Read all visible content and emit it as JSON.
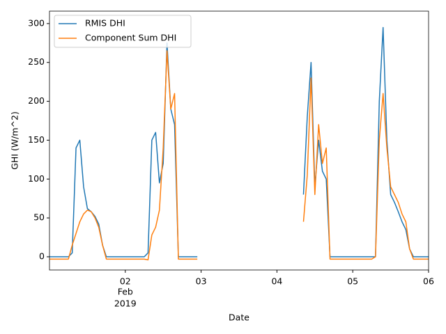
{
  "chart_data": {
    "type": "line",
    "xlabel": "Date",
    "ylabel": "GHI (W/m^2)",
    "x": [
      1,
      1.05,
      1.1,
      1.15,
      1.2,
      1.25,
      1.3,
      1.35,
      1.4,
      1.45,
      1.5,
      1.55,
      1.6,
      1.65,
      1.7,
      1.75,
      1.8,
      1.85,
      1.9,
      1.95,
      2,
      2.05,
      2.1,
      2.15,
      2.2,
      2.25,
      2.3,
      2.35,
      2.4,
      2.45,
      2.5,
      2.55,
      2.6,
      2.65,
      2.7,
      2.75,
      2.8,
      2.85,
      2.9,
      2.95,
      3,
      3.05,
      3.1,
      3.15,
      3.2,
      3.25,
      3.3,
      3.35,
      3.4,
      3.45,
      3.5,
      3.55,
      3.6,
      3.65,
      3.7,
      3.75,
      3.8,
      3.85,
      3.9,
      3.95,
      4,
      4.05,
      4.1,
      4.15,
      4.2,
      4.25,
      4.3,
      4.35,
      4.4,
      4.45,
      4.5,
      4.55,
      4.6,
      4.65,
      4.7,
      4.75,
      4.8,
      4.85,
      4.9,
      4.95,
      5,
      5.05,
      5.1,
      5.15,
      5.2,
      5.25,
      5.3,
      5.35,
      5.4,
      5.45,
      5.5,
      5.55,
      5.6,
      5.65,
      5.7,
      5.75,
      5.8,
      5.85,
      5.9,
      5.95,
      6
    ],
    "series": [
      {
        "name": "RMIS DHI",
        "color": "#1f77b4",
        "values": [
          0,
          0,
          0,
          0,
          0,
          0,
          5,
          140,
          150,
          90,
          62,
          58,
          52,
          42,
          15,
          0,
          0,
          0,
          0,
          0,
          0,
          0,
          0,
          0,
          0,
          0,
          5,
          150,
          160,
          95,
          120,
          275,
          190,
          170,
          0,
          0,
          0,
          0,
          0,
          0,
          null,
          null,
          null,
          null,
          null,
          null,
          null,
          null,
          null,
          null,
          null,
          null,
          null,
          null,
          null,
          null,
          null,
          null,
          null,
          null,
          null,
          null,
          null,
          null,
          null,
          null,
          null,
          80,
          180,
          250,
          90,
          150,
          110,
          100,
          0,
          0,
          0,
          0,
          0,
          0,
          0,
          0,
          0,
          0,
          0,
          0,
          0,
          200,
          295,
          150,
          80,
          70,
          58,
          45,
          35,
          10,
          0,
          0,
          0,
          0,
          0
        ]
      },
      {
        "name": "Component Sum DHI",
        "color": "#ff7f0e",
        "values": [
          -3,
          -3,
          -3,
          -3,
          -3,
          -3,
          15,
          30,
          45,
          55,
          60,
          58,
          50,
          38,
          15,
          -3,
          -3,
          -3,
          -3,
          -3,
          -3,
          -3,
          -3,
          -3,
          -3,
          -3,
          -4,
          28,
          38,
          60,
          140,
          265,
          190,
          210,
          -3,
          -3,
          -3,
          -3,
          -3,
          -3,
          null,
          null,
          null,
          null,
          null,
          null,
          null,
          null,
          null,
          null,
          null,
          null,
          null,
          null,
          null,
          null,
          null,
          null,
          null,
          null,
          null,
          null,
          null,
          null,
          null,
          null,
          null,
          45,
          105,
          230,
          80,
          170,
          120,
          140,
          -3,
          -3,
          -3,
          -3,
          -3,
          -3,
          -3,
          -3,
          -3,
          -3,
          -3,
          -3,
          0,
          150,
          210,
          140,
          90,
          80,
          70,
          55,
          45,
          10,
          -3,
          -3,
          -3,
          -3,
          -3
        ]
      }
    ],
    "xlim": [
      1,
      6
    ],
    "xticks": [
      {
        "value": 2,
        "label": "02"
      },
      {
        "value": 3,
        "label": "03"
      },
      {
        "value": 4,
        "label": "04"
      },
      {
        "value": 5,
        "label": "05"
      },
      {
        "value": 6,
        "label": "06"
      }
    ],
    "xtick_month": "Feb",
    "xtick_year": "2019",
    "ylim": [
      -17,
      316
    ],
    "yticks": [
      0,
      50,
      100,
      150,
      200,
      250,
      300
    ],
    "legend": "upper left"
  }
}
